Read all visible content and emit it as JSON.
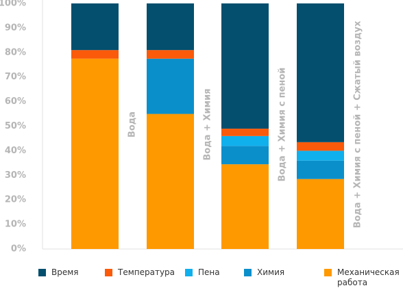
{
  "chart_data": {
    "type": "stacked_bar",
    "categories": [
      "Вода",
      "Вода + Химия",
      "Вода + Химия с пеной",
      "Вода + Химия с пеной + Сжатый воздух"
    ],
    "series": [
      {
        "name": "Время",
        "color": "#044f6e",
        "values": [
          19,
          19,
          51,
          56.5
        ]
      },
      {
        "name": "Температура",
        "color": "#fa5a0a",
        "values": [
          3.5,
          3.5,
          3,
          3.5
        ]
      },
      {
        "name": "Пена",
        "color": "#10b0ec",
        "values": [
          0,
          0,
          4,
          4
        ]
      },
      {
        "name": "Химия",
        "color": "#0b8fcb",
        "values": [
          0,
          22.5,
          7.5,
          7.5
        ]
      },
      {
        "name": "Механическая работа",
        "color": "#ff9900",
        "values": [
          77.5,
          55,
          34.5,
          28.5
        ]
      }
    ],
    "ylim": [
      0,
      100
    ],
    "yticks": [
      {
        "value": 0,
        "label": "0%"
      },
      {
        "value": 10,
        "label": "10%"
      },
      {
        "value": 20,
        "label": "20%"
      },
      {
        "value": 30,
        "label": "30%"
      },
      {
        "value": 40,
        "label": "40%"
      },
      {
        "value": 50,
        "label": "50%"
      },
      {
        "value": 60,
        "label": "60%"
      },
      {
        "value": 70,
        "label": "70%"
      },
      {
        "value": 80,
        "label": "80%"
      },
      {
        "value": 90,
        "label": "90%"
      },
      {
        "value": 100,
        "label": "100%"
      }
    ],
    "grid": false
  }
}
